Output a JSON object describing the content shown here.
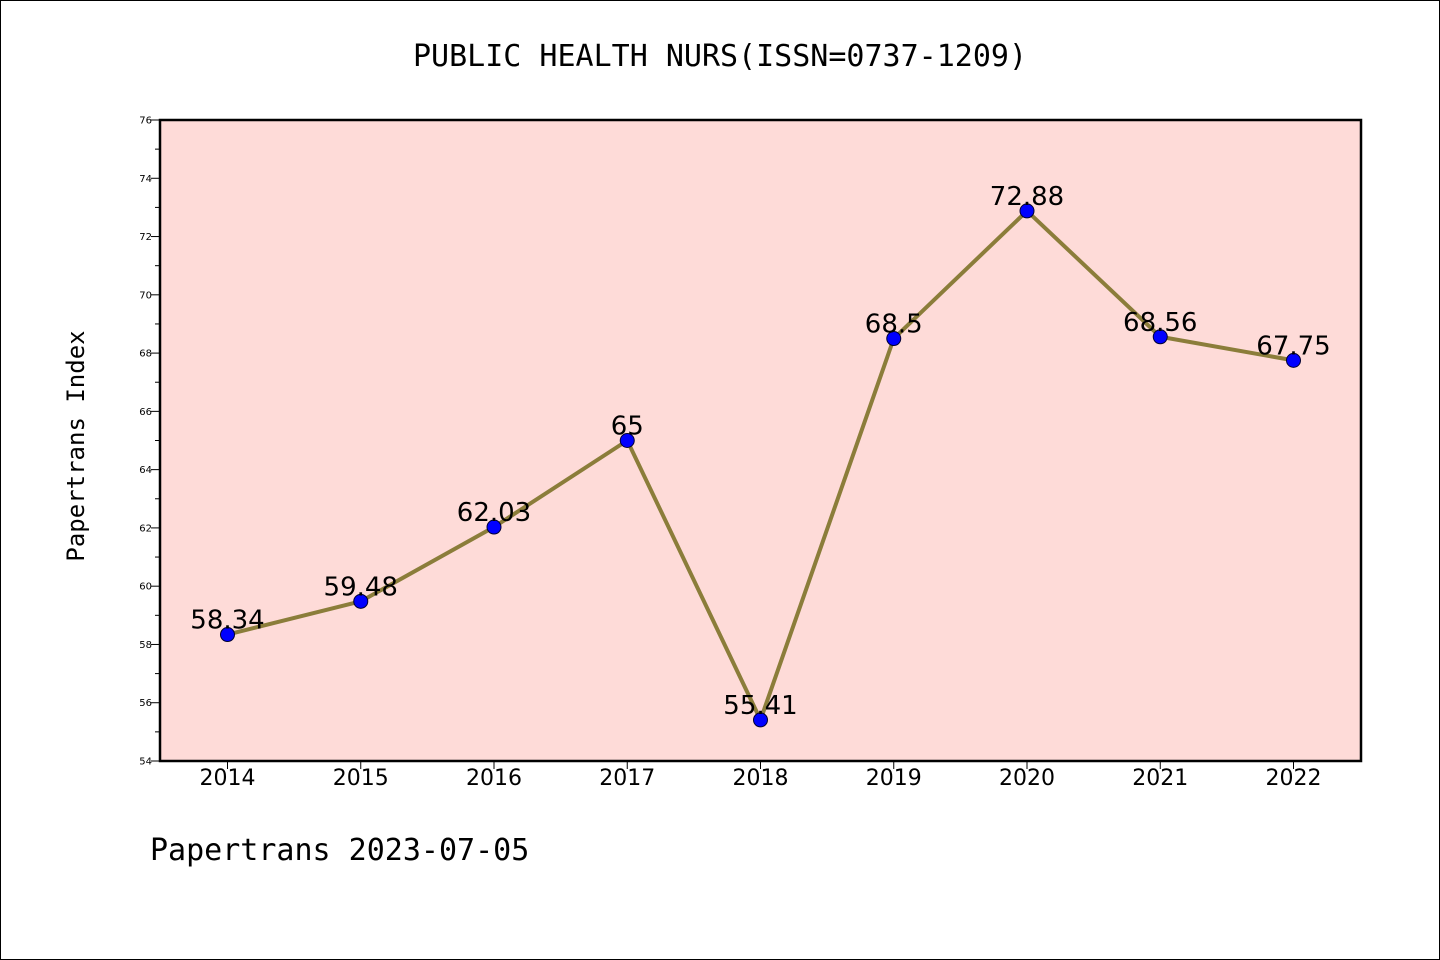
{
  "chart_data": {
    "type": "line",
    "title": "PUBLIC HEALTH NURS(ISSN=0737-1209)",
    "xlabel": "",
    "ylabel": "Papertrans Index",
    "categories": [
      "2014",
      "2015",
      "2016",
      "2017",
      "2018",
      "2019",
      "2020",
      "2021",
      "2022"
    ],
    "series": [
      {
        "values": [
          58.34,
          59.48,
          62.03,
          65,
          55.41,
          68.5,
          72.88,
          68.56,
          67.75
        ],
        "data_labels": [
          "58.34",
          "59.48",
          "62.03",
          "65",
          "55.41",
          "68.5",
          "72.88",
          "68.56",
          "67.75"
        ]
      }
    ],
    "ylim": [
      54,
      76
    ],
    "yticks": [
      "54",
      "56",
      "58",
      "60",
      "62",
      "64",
      "66",
      "68",
      "70",
      "72",
      "74",
      "76"
    ],
    "grid": false,
    "legend": "none",
    "colors": {
      "plot_background": "#fedbd8",
      "line": "#8b7d3a",
      "marker": "#0000ff"
    }
  },
  "footer": {
    "text": "Papertrans 2023-07-05"
  }
}
